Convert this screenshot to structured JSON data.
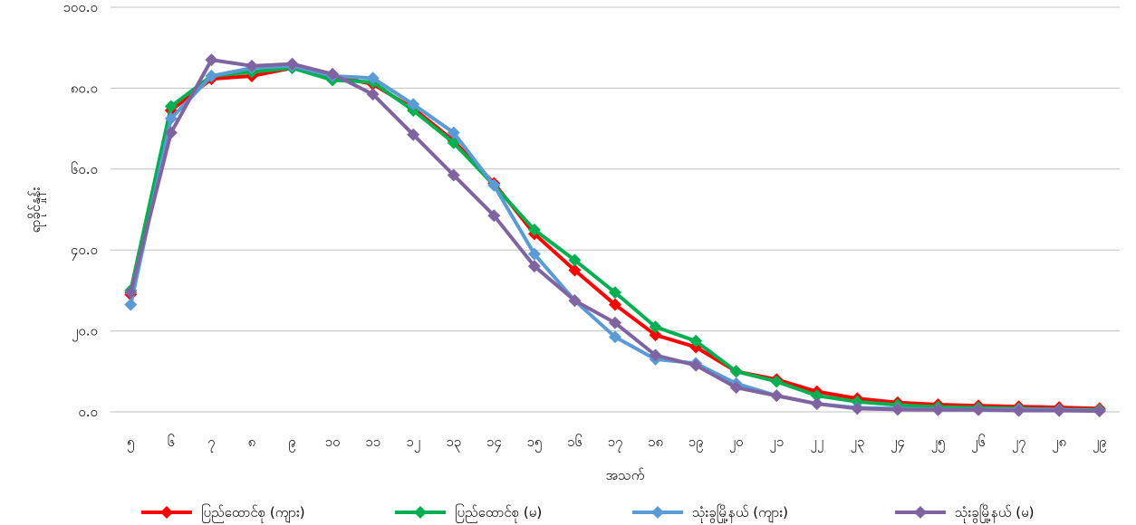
{
  "chart_data": {
    "type": "line",
    "title": "",
    "xlabel": "အသက်",
    "ylabel": "ရာခိုင်နှုန်း",
    "ylim": [
      0,
      100
    ],
    "yticks": [
      "၀.၀",
      "၂၀.၀",
      "၄၀.၀",
      "၆၀.၀",
      "၈၀.၀",
      "၁၀၀.၀"
    ],
    "grid": true,
    "legend_position": "bottom",
    "categories": [
      "၅",
      "၆",
      "၇",
      "၈",
      "၉",
      "၁၀",
      "၁၁",
      "၁၂",
      "၁၃",
      "၁၄",
      "၁၅",
      "၁၆",
      "၁၇",
      "၁၈",
      "၁၉",
      "၂၀",
      "၂၁",
      "၂၂",
      "၂၃",
      "၂၄",
      "၂၅",
      "၂၆",
      "၂၇",
      "၂၈",
      "၂၉"
    ],
    "series": [
      {
        "name": "ပြည်ထောင်စု (ကျား)",
        "color": "#ff0000",
        "values": [
          29.0,
          74.5,
          82.3,
          83.0,
          85.0,
          83.0,
          81.0,
          75.0,
          67.0,
          56.5,
          44.0,
          35.0,
          26.5,
          19.0,
          16.0,
          10.0,
          8.0,
          5.0,
          3.3,
          2.3,
          1.8,
          1.5,
          1.3,
          1.1,
          0.8
        ]
      },
      {
        "name": "ပြည်ထောင်စု (မ)",
        "color": "#00b050",
        "values": [
          30.0,
          75.5,
          83.0,
          84.0,
          85.0,
          82.0,
          81.5,
          74.5,
          66.5,
          56.0,
          45.0,
          37.5,
          29.5,
          21.0,
          17.5,
          10.0,
          7.5,
          4.0,
          2.5,
          1.7,
          1.2,
          1.0,
          0.8,
          0.6,
          0.5
        ]
      },
      {
        "name": "သုံးခွမြို့နယ် (ကျား)",
        "color": "#5b9bd5",
        "values": [
          26.5,
          72.5,
          83.0,
          85.0,
          85.5,
          83.0,
          82.5,
          76.0,
          69.0,
          56.0,
          39.0,
          27.5,
          18.5,
          13.0,
          12.0,
          7.0,
          4.0,
          2.0,
          1.0,
          0.8,
          0.6,
          0.6,
          0.6,
          0.5,
          0.3
        ]
      },
      {
        "name": "သုံးခွမြို့နယ် (မ)",
        "color": "#8064a2",
        "values": [
          29.5,
          69.0,
          87.0,
          85.5,
          86.0,
          83.5,
          78.5,
          68.5,
          58.5,
          48.5,
          36.0,
          27.5,
          22.0,
          14.0,
          11.5,
          6.0,
          4.0,
          2.0,
          0.8,
          0.6,
          0.5,
          0.5,
          0.3,
          0.3,
          0.2
        ]
      }
    ]
  }
}
